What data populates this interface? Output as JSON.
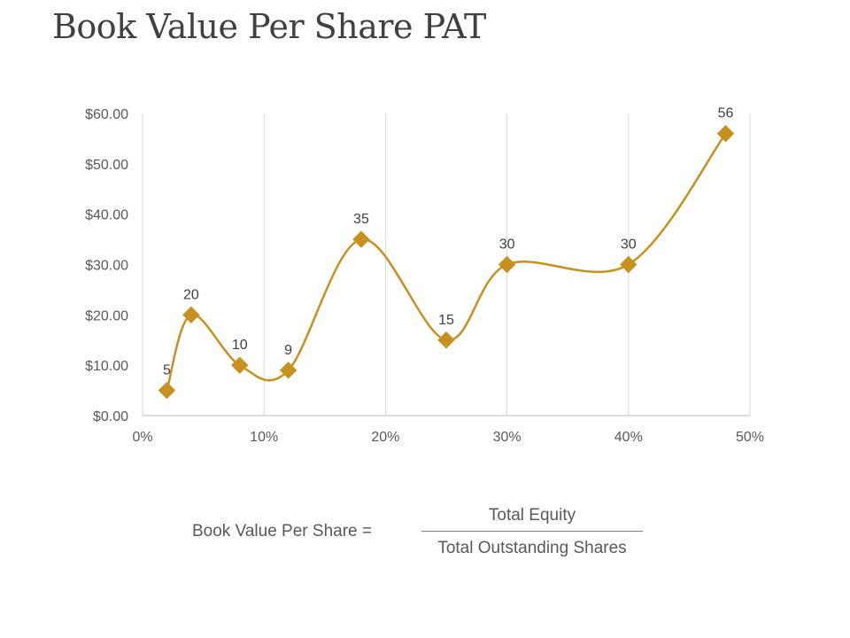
{
  "slide": {
    "title": "Book Value Per Share PAT"
  },
  "chart_data": {
    "type": "scatter",
    "title": "",
    "xlabel": "",
    "ylabel": "",
    "xlim": [
      0,
      0.5
    ],
    "ylim": [
      0,
      60
    ],
    "x_ticks": [
      0,
      0.1,
      0.2,
      0.3,
      0.4,
      0.5
    ],
    "x_tick_labels": [
      "0%",
      "10%",
      "20%",
      "30%",
      "40%",
      "50%"
    ],
    "y_ticks": [
      0,
      10,
      20,
      30,
      40,
      50,
      60
    ],
    "y_tick_labels": [
      "$0.00",
      "$10.00",
      "$20.00",
      "$30.00",
      "$40.00",
      "$50.00",
      "$60.00"
    ],
    "grid": "vertical",
    "smooth": true,
    "line_color": "#C8901E",
    "series": [
      {
        "name": "Book Value Per Share",
        "points": [
          {
            "x": 0.02,
            "y": 5,
            "label": "5"
          },
          {
            "x": 0.04,
            "y": 20,
            "label": "20"
          },
          {
            "x": 0.08,
            "y": 10,
            "label": "10"
          },
          {
            "x": 0.12,
            "y": 9,
            "label": "9"
          },
          {
            "x": 0.18,
            "y": 35,
            "label": "35"
          },
          {
            "x": 0.25,
            "y": 15,
            "label": "15"
          },
          {
            "x": 0.3,
            "y": 30,
            "label": "30"
          },
          {
            "x": 0.4,
            "y": 30,
            "label": "30"
          },
          {
            "x": 0.48,
            "y": 56,
            "label": "56"
          }
        ]
      }
    ]
  },
  "formula": {
    "lhs": "Book Value Per Share =",
    "numerator": "Total Equity",
    "denominator": "Total Outstanding Shares"
  }
}
